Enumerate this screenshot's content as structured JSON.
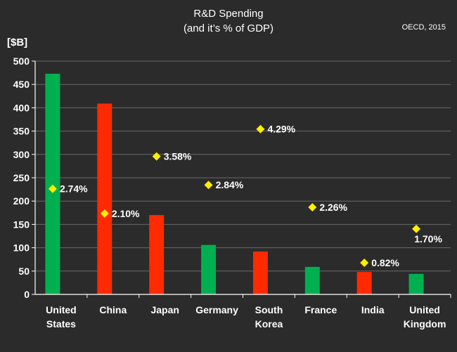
{
  "chart_data": {
    "type": "bar",
    "title": "R&D Spending",
    "subtitle": "(and it’s % of GDP)",
    "source_note": "OECD, 2015",
    "ylabel": "[$B]",
    "xlabel": "",
    "ylim": [
      0,
      500
    ],
    "y_ticks": [
      "0",
      "50",
      "100",
      "150",
      "200",
      "250",
      "300",
      "350",
      "400",
      "450",
      "500"
    ],
    "grid": true,
    "categories": [
      [
        "United",
        "States"
      ],
      [
        "China"
      ],
      [
        "Japan"
      ],
      [
        "Germany"
      ],
      [
        "South",
        "Korea"
      ],
      [
        "France"
      ],
      [
        "India"
      ],
      [
        "United",
        "Kingdom"
      ]
    ],
    "series": [
      {
        "name": "R&D Spending ($B)",
        "values": [
          473,
          409,
          170,
          106,
          92,
          59,
          48,
          44
        ],
        "colors": [
          "#00b050",
          "#ff2a00",
          "#ff2a00",
          "#00b050",
          "#ff2a00",
          "#00b050",
          "#ff2a00",
          "#00b050"
        ]
      },
      {
        "name": "% of GDP",
        "values": [
          2.74,
          2.1,
          3.58,
          2.84,
          4.29,
          2.26,
          0.82,
          1.7
        ],
        "labels": [
          "2.74%",
          "2.10%",
          "3.58%",
          "2.84%",
          "4.29%",
          "2.26%",
          "0.82%",
          "1.70%"
        ],
        "marker_color": "#ffee00",
        "scale_note": "plotted at value x 82.6 on the $B axis"
      }
    ],
    "colors": {
      "background": "#2b2b2b",
      "grid": "#6a6a6a",
      "axis": "#ffffff",
      "text": "#ffffff",
      "green": "#00b050",
      "red": "#ff2a00",
      "diamond": "#ffee00"
    }
  }
}
